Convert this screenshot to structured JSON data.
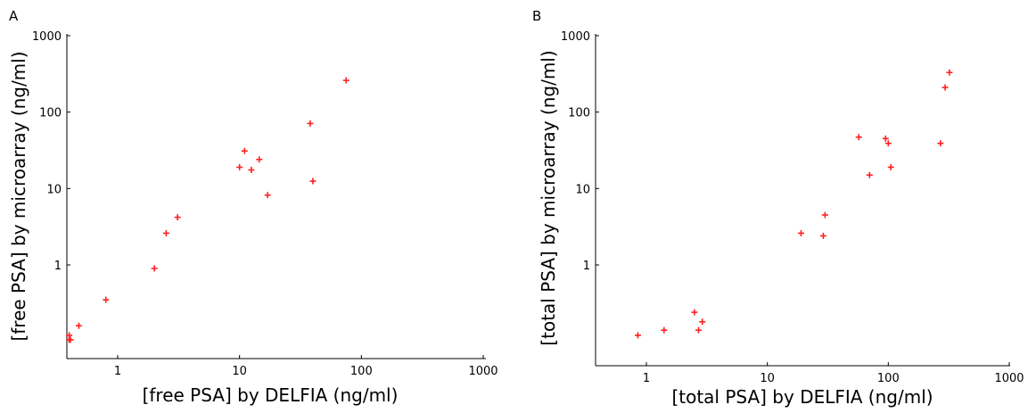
{
  "chart_data": [
    {
      "panel_label": "A",
      "type": "scatter",
      "xlabel": "[free PSA] by DELFIA (ng/ml)",
      "ylabel": "[free PSA] by microarray (ng/ml)",
      "x_scale": "log",
      "y_scale": "log",
      "xlim": [
        0.38,
        1000
      ],
      "ylim": [
        0.06,
        1000
      ],
      "x_ticks": [
        1,
        10,
        100,
        1000
      ],
      "x_tick_labels": [
        "1",
        "10",
        "100",
        "1000"
      ],
      "y_ticks": [
        1,
        10,
        100,
        1000
      ],
      "y_tick_labels": [
        "1",
        "10",
        "100",
        "1000"
      ],
      "grid": false,
      "marker_color": "#ff2020",
      "points": [
        {
          "x": 0.4,
          "y": 0.12
        },
        {
          "x": 0.4,
          "y": 0.105
        },
        {
          "x": 0.41,
          "y": 0.105
        },
        {
          "x": 0.48,
          "y": 0.16
        },
        {
          "x": 0.8,
          "y": 0.35
        },
        {
          "x": 2.0,
          "y": 0.9
        },
        {
          "x": 2.5,
          "y": 2.6
        },
        {
          "x": 3.1,
          "y": 4.2
        },
        {
          "x": 10,
          "y": 19
        },
        {
          "x": 11,
          "y": 31
        },
        {
          "x": 12.5,
          "y": 17.5
        },
        {
          "x": 14.5,
          "y": 24
        },
        {
          "x": 17,
          "y": 8.2
        },
        {
          "x": 38,
          "y": 71
        },
        {
          "x": 40,
          "y": 12.5
        },
        {
          "x": 75,
          "y": 260
        }
      ]
    },
    {
      "panel_label": "B",
      "type": "scatter",
      "xlabel": "[total PSA] by DELFIA (ng/ml)",
      "ylabel": "[total PSA] by microarray (ng/ml)",
      "x_scale": "log",
      "y_scale": "log",
      "xlim": [
        0.3,
        1000
      ],
      "ylim": [
        0.06,
        1000
      ],
      "x_ticks": [
        1,
        10,
        100,
        1000
      ],
      "x_tick_labels": [
        "1",
        "10",
        "100",
        "1000"
      ],
      "y_ticks": [
        1,
        10,
        100,
        1000
      ],
      "y_tick_labels": [
        "1",
        "10",
        "100",
        "1000"
      ],
      "grid": false,
      "marker_color": "#ff2020",
      "points": [
        {
          "x": 0.85,
          "y": 0.12
        },
        {
          "x": 1.4,
          "y": 0.14
        },
        {
          "x": 2.5,
          "y": 0.24
        },
        {
          "x": 2.7,
          "y": 0.14
        },
        {
          "x": 2.9,
          "y": 0.18
        },
        {
          "x": 19,
          "y": 2.6
        },
        {
          "x": 29,
          "y": 2.4
        },
        {
          "x": 30,
          "y": 4.5
        },
        {
          "x": 57,
          "y": 47
        },
        {
          "x": 70,
          "y": 15
        },
        {
          "x": 95,
          "y": 45
        },
        {
          "x": 100,
          "y": 39
        },
        {
          "x": 105,
          "y": 19
        },
        {
          "x": 270,
          "y": 39
        },
        {
          "x": 295,
          "y": 210
        },
        {
          "x": 320,
          "y": 330
        }
      ]
    }
  ]
}
